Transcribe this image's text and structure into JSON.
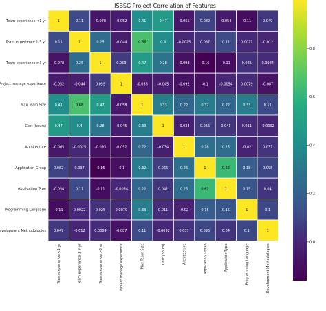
{
  "chart_data": {
    "type": "heatmap",
    "title": "ISBSG Project Correlation of Features",
    "labels": [
      "Team experience <1 yr",
      "Team experience 1-3 yr",
      "Team experience >3 yr",
      "Project manage experience",
      "Max Team Size",
      "Cost (hours)",
      "Architecture",
      "Application Group",
      "Application Type",
      "Programming Language",
      "Development Methodologies"
    ],
    "cell_labels": [
      [
        "1",
        "0.11",
        "-0.078",
        "-0.052",
        "0.41",
        "0.47",
        "-0.065",
        "0.082",
        "-0.054",
        "-0.11",
        "0.049"
      ],
      [
        "0.11",
        "1",
        "0.25",
        "-0.044",
        "0.66",
        "0.4",
        "-0.0025",
        "0.037",
        "0.11",
        "0.0022",
        "-0.012"
      ],
      [
        "-0.078",
        "0.25",
        "1",
        "0.059",
        "0.47",
        "0.28",
        "-0.093",
        "-0.16",
        "-0.11",
        "0.025",
        "0.0084"
      ],
      [
        "-0.052",
        "-0.044",
        "0.059",
        "1",
        "-0.058",
        "-0.045",
        "-0.092",
        "-0.1",
        "-0.0054",
        "0.0079",
        "-0.087"
      ],
      [
        "0.41",
        "0.66",
        "0.47",
        "-0.058",
        "1",
        "0.33",
        "0.22",
        "0.32",
        "0.22",
        "0.33",
        "0.11"
      ],
      [
        "0.47",
        "0.4",
        "0.28",
        "-0.045",
        "0.33",
        "1",
        "-0.034",
        "0.065",
        "0.041",
        "0.011",
        "-0.0092"
      ],
      [
        "-0.065",
        "-0.0025",
        "-0.093",
        "-0.092",
        "0.22",
        "-0.034",
        "1",
        "0.26",
        "0.25",
        "-0.02",
        "0.037"
      ],
      [
        "0.082",
        "0.037",
        "-0.16",
        "-0.1",
        "0.32",
        "0.065",
        "0.26",
        "1",
        "0.62",
        "0.18",
        "0.095"
      ],
      [
        "-0.054",
        "0.11",
        "-0.11",
        "-0.0054",
        "0.22",
        "0.041",
        "0.25",
        "0.62",
        "1",
        "0.15",
        "0.04"
      ],
      [
        "-0.11",
        "0.0022",
        "0.025",
        "0.0079",
        "0.33",
        "0.011",
        "-0.02",
        "0.18",
        "0.15",
        "1",
        "0.1"
      ],
      [
        "0.049",
        "-0.012",
        "0.0084",
        "-0.087",
        "0.11",
        "-0.0092",
        "0.037",
        "0.095",
        "0.04",
        "0.1",
        "1"
      ]
    ],
    "colormap": "viridis",
    "colorbar": {
      "min": -0.16,
      "max": 1.0,
      "tick_values": [
        0.0,
        0.2,
        0.4,
        0.6,
        0.8
      ],
      "tick_labels": [
        "0.0",
        "0.2",
        "0.4",
        "0.6",
        "0.8"
      ]
    },
    "colors": {
      "grid_line": "#ffffff",
      "text_dark": "#000000",
      "text_light": "#ffffff"
    }
  }
}
